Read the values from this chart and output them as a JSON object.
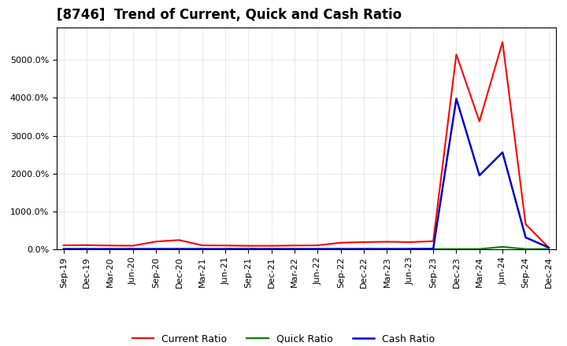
{
  "title": "[8746]  Trend of Current, Quick and Cash Ratio",
  "background_color": "#ffffff",
  "plot_bg_color": "#ffffff",
  "grid_color": "#bbbbbb",
  "dates": [
    "Sep-19",
    "Dec-19",
    "Mar-20",
    "Jun-20",
    "Sep-20",
    "Dec-20",
    "Mar-21",
    "Jun-21",
    "Sep-21",
    "Dec-21",
    "Mar-22",
    "Jun-22",
    "Sep-22",
    "Dec-22",
    "Mar-23",
    "Jun-23",
    "Sep-23",
    "Dec-23",
    "Mar-24",
    "Jun-24",
    "Sep-24",
    "Dec-24"
  ],
  "current_ratio": [
    100,
    105,
    95,
    90,
    200,
    240,
    100,
    95,
    88,
    88,
    95,
    100,
    170,
    185,
    195,
    185,
    210,
    5150,
    3380,
    5480,
    660,
    40
  ],
  "quick_ratio": [
    3,
    3,
    3,
    3,
    3,
    3,
    3,
    3,
    3,
    3,
    3,
    3,
    3,
    3,
    3,
    3,
    3,
    3,
    3,
    60,
    3,
    3
  ],
  "cash_ratio": [
    3,
    3,
    3,
    3,
    3,
    3,
    3,
    3,
    3,
    3,
    3,
    3,
    3,
    3,
    3,
    3,
    10,
    3980,
    1950,
    2560,
    310,
    40
  ],
  "current_color": "#ff0000",
  "quick_color": "#008000",
  "cash_color": "#0000cc",
  "ylim_max": 5500,
  "ytick_values": [
    0,
    1000,
    2000,
    3000,
    4000,
    5000
  ],
  "ytick_labels": [
    "0.0%",
    "1000.0%",
    "2000.0%",
    "3000.0%",
    "4000.0%",
    "5000.0%"
  ],
  "legend_labels": [
    "Current Ratio",
    "Quick Ratio",
    "Cash Ratio"
  ],
  "title_fontsize": 12,
  "tick_fontsize": 8,
  "legend_fontsize": 9
}
